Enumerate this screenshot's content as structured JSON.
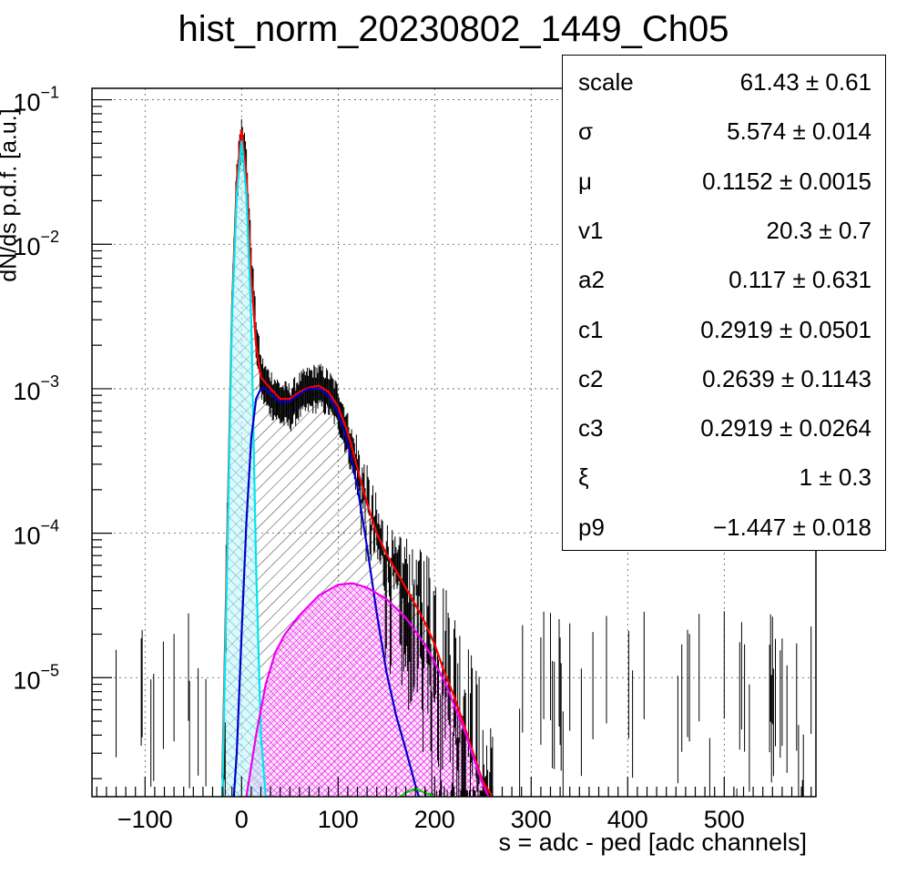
{
  "chart_data": {
    "type": "histogram",
    "title": "hist_norm_20230802_1449_Ch05",
    "xlabel": "s = adc - ped [adc channels]",
    "ylabel": "dN/ds p.d.f. [a.u.]",
    "xlim": [
      -155,
      595
    ],
    "ylim": [
      1.5e-06,
      0.12
    ],
    "log_y": true,
    "grid": true,
    "x_ticks": [
      "-100",
      "0",
      "100",
      "200",
      "300",
      "400",
      "500"
    ],
    "x_tick_values": [
      -100,
      0,
      100,
      200,
      300,
      400,
      500
    ],
    "y_tick_values": [
      1e-05,
      0.0001,
      0.001,
      0.01,
      0.1
    ],
    "y_ticks": [
      "10",
      "10",
      "10",
      "10",
      "10"
    ],
    "y_tick_exponents": [
      "-5",
      "-4",
      "-3",
      "-2",
      "-1"
    ],
    "histogram_profile": {
      "x": [
        -20,
        -10,
        -5,
        0,
        5,
        10,
        15,
        20,
        25,
        30,
        40,
        50,
        60,
        70,
        80,
        90,
        100,
        110,
        120,
        130,
        140,
        150,
        160,
        170,
        180,
        190,
        200,
        210,
        220,
        230,
        240,
        250,
        260
      ],
      "y": [
        2e-06,
        0.004,
        0.03,
        0.065,
        0.035,
        0.008,
        0.0025,
        0.0013,
        0.0011,
        0.001,
        0.00085,
        0.0008,
        0.00095,
        0.00105,
        0.0011,
        0.001,
        0.0008,
        0.0005,
        0.00028,
        0.00016,
        0.0001,
        7e-05,
        5e-05,
        3.5e-05,
        2.8e-05,
        2.2e-05,
        1.7e-05,
        1.2e-05,
        8e-06,
        5.5e-06,
        3.5e-06,
        2.2e-06,
        1.5e-06
      ]
    },
    "series": [
      {
        "name": "",
        "color": "#ff0000",
        "x": [
          -20,
          -10,
          -5,
          0,
          5,
          10,
          15,
          20,
          30,
          40,
          50,
          60,
          70,
          80,
          90,
          100,
          110,
          120,
          130,
          140,
          150,
          160,
          170,
          180,
          190,
          200,
          210,
          220,
          230,
          240,
          250,
          260,
          265
        ],
        "y": [
          2e-06,
          0.0035,
          0.028,
          0.062,
          0.03,
          0.006,
          0.002,
          0.0012,
          0.001,
          0.00085,
          0.00085,
          0.00095,
          0.00102,
          0.00105,
          0.00095,
          0.00075,
          0.0005,
          0.00028,
          0.00016,
          0.0001,
          7.2e-05,
          5.5e-05,
          4.2e-05,
          3.2e-05,
          2.4e-05,
          1.7e-05,
          1.1e-05,
          7.5e-06,
          4.8e-06,
          3e-06,
          1.9e-06,
          1.5e-06,
          1.3e-06
        ]
      },
      {
        "name": "",
        "color": "#00e5ee",
        "x": [
          -20,
          -15,
          -10,
          -5,
          0,
          5,
          10,
          15,
          20,
          25
        ],
        "y": [
          1.5e-06,
          6e-05,
          0.003,
          0.022,
          0.052,
          0.022,
          0.003,
          6e-05,
          4e-06,
          1.5e-06
        ]
      },
      {
        "name": "",
        "color": "#0000cc",
        "x": [
          -8,
          -5,
          0,
          5,
          10,
          15,
          20,
          25,
          30,
          40,
          50,
          60,
          70,
          80,
          90,
          100,
          110,
          120,
          130,
          140,
          150,
          160,
          170,
          180,
          185
        ],
        "y": [
          1.5e-06,
          3e-06,
          2e-05,
          0.00012,
          0.00045,
          0.00085,
          0.001,
          0.001,
          0.00093,
          0.0008,
          0.00082,
          0.00092,
          0.001,
          0.001,
          0.0009,
          0.00068,
          0.00042,
          0.00021,
          8e-05,
          2.8e-05,
          1.1e-05,
          5.5e-06,
          3.2e-06,
          1.8e-06,
          1.4e-06
        ]
      },
      {
        "name": "",
        "color": "#ee00ee",
        "x": [
          5,
          15,
          25,
          35,
          45,
          60,
          80,
          100,
          115,
          130,
          150,
          170,
          190,
          210,
          230,
          250,
          258
        ],
        "y": [
          1.5e-06,
          4e-06,
          9e-06,
          1.5e-05,
          2e-05,
          2.7e-05,
          3.7e-05,
          4.4e-05,
          4.5e-05,
          4.2e-05,
          3.5e-05,
          2.6e-05,
          1.7e-05,
          9.5e-06,
          4.5e-06,
          1.8e-06,
          1.4e-06
        ]
      },
      {
        "name": "",
        "color": "#00cc00",
        "x": [
          160,
          170,
          180,
          190,
          200,
          205
        ],
        "y": [
          1.4e-06,
          1.6e-06,
          1.7e-06,
          1.6e-06,
          1.5e-06,
          1.4e-06
        ]
      }
    ]
  },
  "stats": [
    {
      "name": "scale",
      "value": "61.43 ± 0.61"
    },
    {
      "name": "σ",
      "value": "5.574 ± 0.014"
    },
    {
      "name": "μ",
      "value": "0.1152 ± 0.0015"
    },
    {
      "name": "v1",
      "value": "20.3 ± 0.7"
    },
    {
      "name": "a2",
      "value": "0.117 ± 0.631"
    },
    {
      "name": "c1",
      "value": "0.2919 ± 0.0501"
    },
    {
      "name": "c2",
      "value": "0.2639 ± 0.1143"
    },
    {
      "name": "c3",
      "value": "0.2919 ± 0.0264"
    },
    {
      "name": "ξ",
      "value": "1 ± 0.3"
    },
    {
      "name": "p9",
      "value": "−1.447 ± 0.018"
    }
  ]
}
